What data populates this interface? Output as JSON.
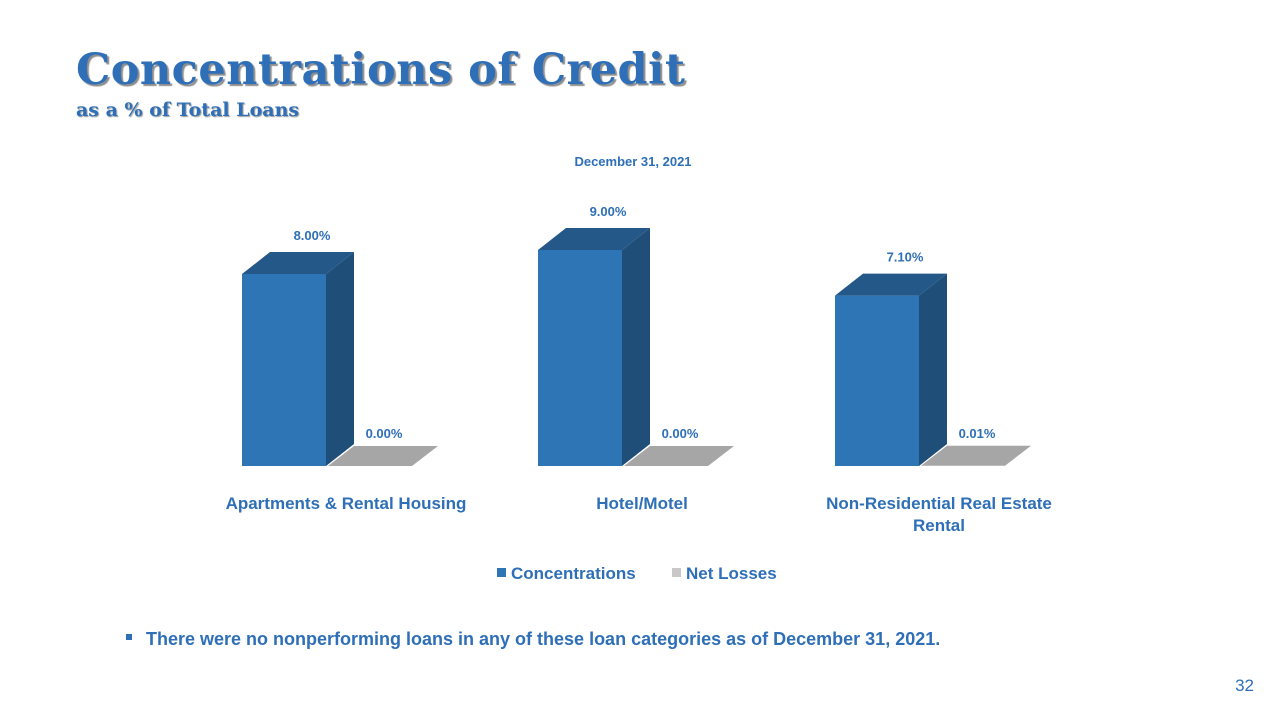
{
  "slide": {
    "title": "Concentrations of Credit",
    "subtitle": "as a % of Total Loans",
    "bullet": "There were no nonperforming loans in any of these loan categories as of December 31, 2021.",
    "page_number": "32"
  },
  "colors": {
    "accent": "#2e6fb7",
    "bar_front": "#2e75b6",
    "bar_side": "#1f4e79",
    "bar_top": "#245889",
    "net_front": "#c8c8c8",
    "net_top": "#a6a6a6"
  },
  "chart_data": {
    "type": "bar",
    "title": "December 31, 2021",
    "categories": [
      [
        "Apartments & Rental Housing"
      ],
      [
        "Hotel/Motel"
      ],
      [
        "Non-Residential Real Estate",
        "Rental"
      ]
    ],
    "series": [
      {
        "name": "Concentrations",
        "values": [
          8.0,
          9.0,
          7.1
        ],
        "labels": [
          "8.00%",
          "9.00%",
          "7.10%"
        ]
      },
      {
        "name": "Net Losses",
        "values": [
          0.0,
          0.0,
          0.01
        ],
        "labels": [
          "0.00%",
          "0.00%",
          "0.01%"
        ]
      }
    ],
    "ylim": [
      0,
      10
    ],
    "legend_position": "bottom",
    "grid": false
  }
}
